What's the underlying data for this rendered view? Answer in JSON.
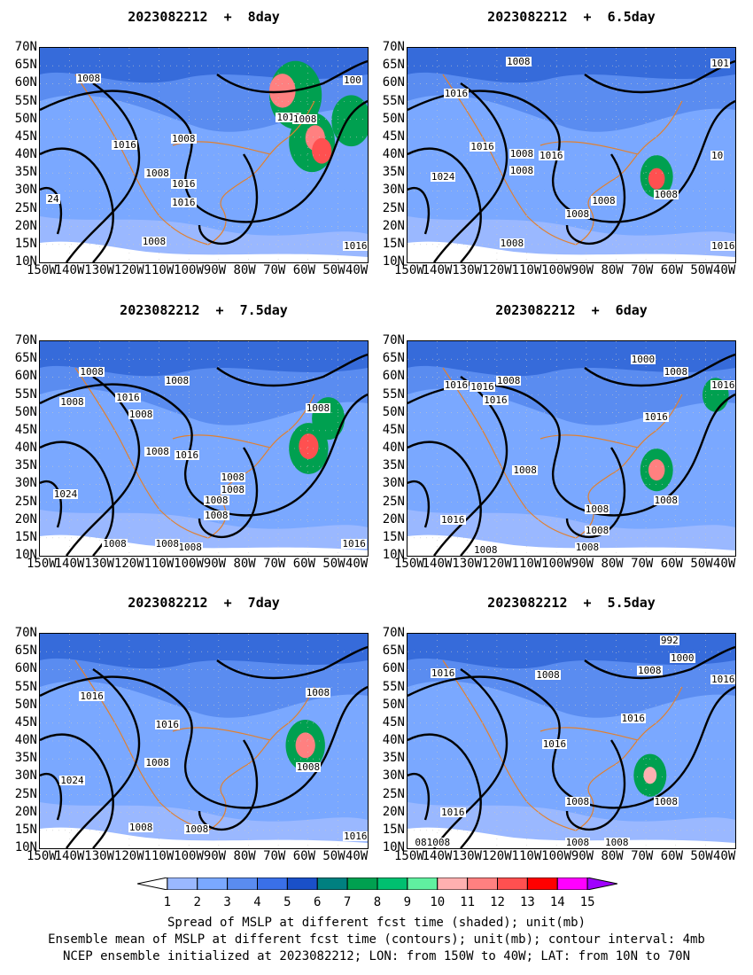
{
  "panels": [
    {
      "id": "p1",
      "title": "2023082212  +  8day",
      "contour_labels": [
        "1008",
        "1016",
        "1016",
        "1008",
        "1008",
        "1016",
        "1016",
        "1008",
        "1008",
        "1016",
        "100",
        "24"
      ]
    },
    {
      "id": "p2",
      "title": "2023082212  +  6.5day",
      "contour_labels": [
        "1008",
        "1016",
        "1016",
        "1008",
        "1016",
        "1008",
        "1024",
        "1008",
        "1008",
        "1008",
        "1008",
        "1008",
        "1016",
        "101",
        "10"
      ]
    },
    {
      "id": "p3",
      "title": "2023082212  +  7.5day",
      "contour_labels": [
        "1008",
        "1008",
        "1016",
        "1008",
        "1008",
        "1008",
        "1016",
        "1008",
        "1008",
        "1008",
        "1008",
        "1008",
        "1024",
        "1008",
        "1008",
        "1008",
        "1016"
      ]
    },
    {
      "id": "p4",
      "title": "2023082212  +  6day",
      "contour_labels": [
        "1000",
        "1008",
        "1016",
        "1016",
        "1008",
        "1016",
        "1016",
        "1016",
        "1008",
        "1008",
        "1008",
        "1008",
        "1016",
        "1008",
        "1008"
      ]
    },
    {
      "id": "p5",
      "title": "2023082212  +  7day",
      "contour_labels": [
        "1016",
        "1008",
        "1016",
        "1008",
        "1024",
        "1008",
        "1008",
        "1008",
        "1016"
      ]
    },
    {
      "id": "p6",
      "title": "2023082212  +  5.5day",
      "contour_labels": [
        "992",
        "1000",
        "1008",
        "1016",
        "1008",
        "1016",
        "1016",
        "1016",
        "1016",
        "1008",
        "1008",
        "1008",
        "1008",
        "081008"
      ]
    }
  ],
  "axes": {
    "y_ticks": [
      "70N",
      "65N",
      "60N",
      "55N",
      "50N",
      "45N",
      "40N",
      "35N",
      "30N",
      "25N",
      "20N",
      "15N",
      "10N"
    ],
    "x_ticks": [
      "150W",
      "140W",
      "130W",
      "120W",
      "110W",
      "100W",
      "90W",
      "80W",
      "70W",
      "60W",
      "50W",
      "40W"
    ]
  },
  "colorbar": {
    "labels": [
      "1",
      "2",
      "3",
      "4",
      "5",
      "6",
      "7",
      "8",
      "9",
      "10",
      "11",
      "12",
      "13",
      "14",
      "15"
    ],
    "colors": [
      "#ffffff",
      "#9ab8ff",
      "#7aa8ff",
      "#5a8cf0",
      "#3a70e8",
      "#1a50c8",
      "#008080",
      "#00a050",
      "#00c070",
      "#60f0a0",
      "#ffb0b0",
      "#ff8080",
      "#ff5050",
      "#ff0000",
      "#ff00ff",
      "#a000ff"
    ]
  },
  "caption": {
    "line1": "Spread of MSLP at different fcst time (shaded); unit(mb)",
    "line2": "Ensemble mean of MSLP at different fcst time (contours); unit(mb); contour interval: 4mb",
    "line3": "NCEP ensemble initialized at 2023082212; LON: from 150W to 40W; LAT: from 10N to 70N"
  }
}
